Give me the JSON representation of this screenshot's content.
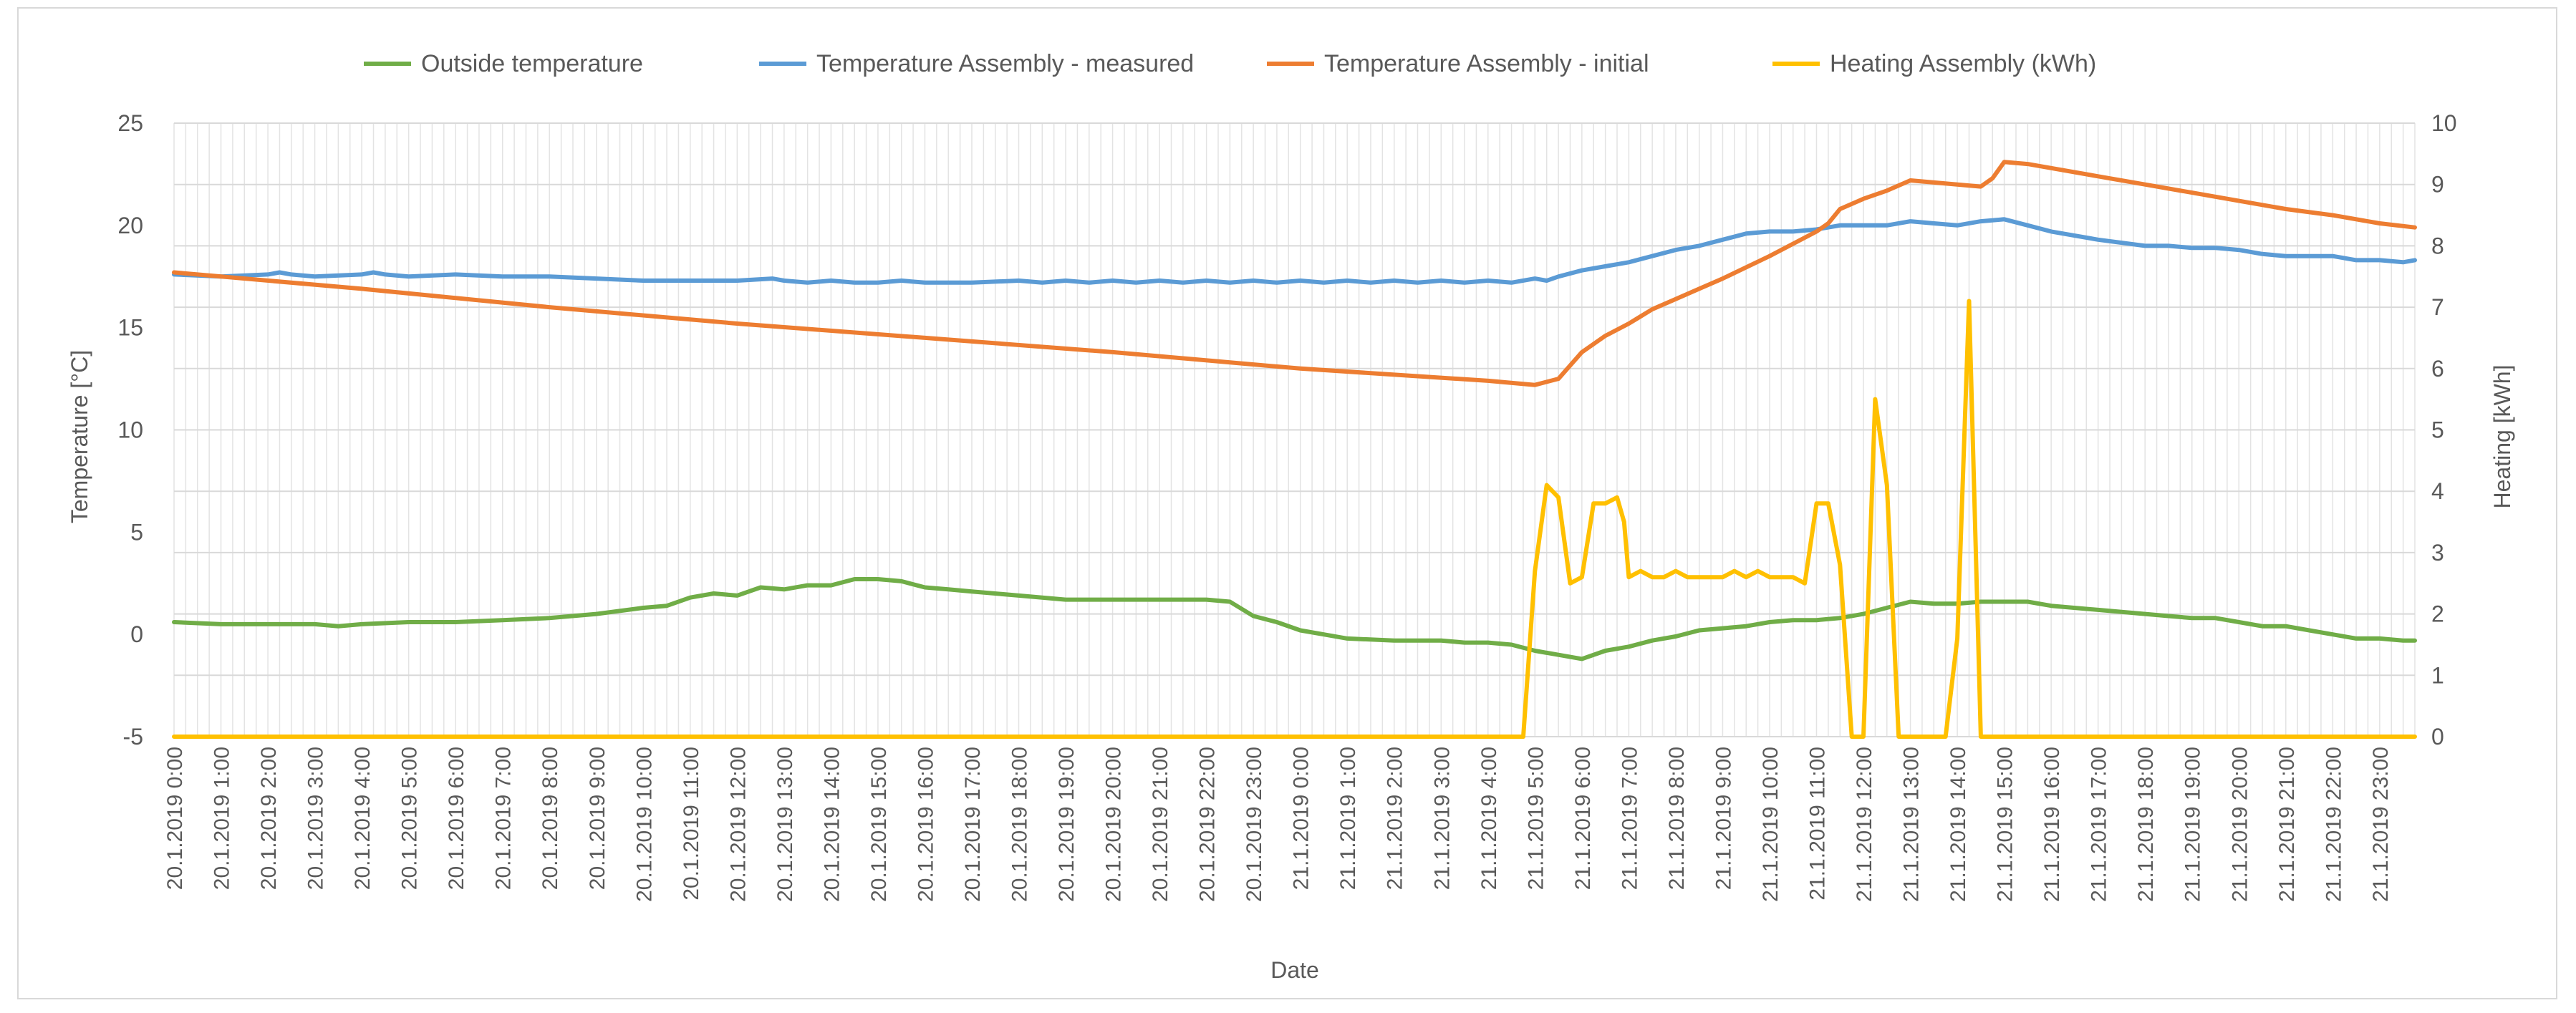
{
  "chart_data": {
    "type": "line",
    "title": "",
    "xlabel": "Date",
    "ylabel": "Temperature [°C]",
    "y2label": "Heating [kWh]",
    "ylim": [
      -5,
      25
    ],
    "yticks": [
      -5,
      0,
      5,
      10,
      15,
      20,
      25
    ],
    "y2lim": [
      0,
      10
    ],
    "y2ticks": [
      0,
      1,
      2,
      3,
      4,
      5,
      6,
      7,
      8,
      9,
      10
    ],
    "grid": true,
    "legend_position": "top",
    "x_domain": [
      0,
      47.75
    ],
    "tick_labels": [
      "20.1.2019 0:00",
      "20.1.2019 1:00",
      "20.1.2019 2:00",
      "20.1.2019 3:00",
      "20.1.2019 4:00",
      "20.1.2019 5:00",
      "20.1.2019 6:00",
      "20.1.2019 7:00",
      "20.1.2019 8:00",
      "20.1.2019 9:00",
      "20.1.2019 10:00",
      "20.1.2019 11:00",
      "20.1.2019 12:00",
      "20.1.2019 13:00",
      "20.1.2019 14:00",
      "20.1.2019 15:00",
      "20.1.2019 16:00",
      "20.1.2019 17:00",
      "20.1.2019 18:00",
      "20.1.2019 19:00",
      "20.1.2019 20:00",
      "20.1.2019 21:00",
      "20.1.2019 22:00",
      "20.1.2019 23:00",
      "21.1.2019 0:00",
      "21.1.2019 1:00",
      "21.1.2019 2:00",
      "21.1.2019 3:00",
      "21.1.2019 4:00",
      "21.1.2019 5:00",
      "21.1.2019 6:00",
      "21.1.2019 7:00",
      "21.1.2019 8:00",
      "21.1.2019 9:00",
      "21.1.2019 10:00",
      "21.1.2019 11:00",
      "21.1.2019 12:00",
      "21.1.2019 13:00",
      "21.1.2019 14:00",
      "21.1.2019 15:00",
      "21.1.2019 16:00",
      "21.1.2019 17:00",
      "21.1.2019 18:00",
      "21.1.2019 19:00",
      "21.1.2019 20:00",
      "21.1.2019 21:00",
      "21.1.2019 22:00",
      "21.1.2019 23:00"
    ],
    "series": [
      {
        "name": "Outside temperature",
        "color": "#70AD47",
        "axis": "left",
        "x": [
          0,
          1,
          2,
          3,
          3.5,
          4,
          5,
          6,
          7,
          8,
          9,
          10,
          10.5,
          11,
          11.5,
          12,
          12.5,
          13,
          13.5,
          14,
          14.5,
          15,
          15.5,
          16,
          16.5,
          17,
          18,
          19,
          20,
          21,
          22,
          22.5,
          23,
          23.5,
          24,
          24.5,
          25,
          26,
          26.5,
          27,
          27.5,
          28,
          28.5,
          29,
          29.5,
          30,
          30.5,
          31,
          31.5,
          32,
          32.5,
          33,
          33.5,
          34,
          34.5,
          35,
          35.5,
          36,
          36.5,
          37,
          37.5,
          38,
          38.5,
          39,
          39.5,
          40,
          41,
          42,
          42.5,
          43,
          43.5,
          44,
          44.5,
          45,
          45.5,
          46,
          46.5,
          47,
          47.5,
          47.75
        ],
        "values": [
          0.6,
          0.5,
          0.5,
          0.5,
          0.4,
          0.5,
          0.6,
          0.6,
          0.7,
          0.8,
          1.0,
          1.3,
          1.4,
          1.8,
          2.0,
          1.9,
          2.3,
          2.2,
          2.4,
          2.4,
          2.7,
          2.7,
          2.6,
          2.3,
          2.2,
          2.1,
          1.9,
          1.7,
          1.7,
          1.7,
          1.7,
          1.6,
          0.9,
          0.6,
          0.2,
          0.0,
          -0.2,
          -0.3,
          -0.3,
          -0.3,
          -0.4,
          -0.4,
          -0.5,
          -0.8,
          -1.0,
          -1.2,
          -0.8,
          -0.6,
          -0.3,
          -0.1,
          0.2,
          0.3,
          0.4,
          0.6,
          0.7,
          0.7,
          0.8,
          1.0,
          1.3,
          1.6,
          1.5,
          1.5,
          1.6,
          1.6,
          1.6,
          1.4,
          1.2,
          1.0,
          0.9,
          0.8,
          0.8,
          0.6,
          0.4,
          0.4,
          0.2,
          0.0,
          -0.2,
          -0.2,
          -0.3,
          -0.3
        ]
      },
      {
        "name": "Temperature Assembly - measured",
        "color": "#5B9BD5",
        "axis": "left",
        "x": [
          0,
          1,
          2,
          2.25,
          2.5,
          3,
          4,
          4.25,
          4.5,
          5,
          6,
          7,
          8,
          9,
          10,
          11,
          12,
          12.75,
          13,
          13.5,
          14,
          14.5,
          15,
          15.5,
          16,
          17,
          18,
          18.5,
          19,
          19.5,
          20,
          20.5,
          21,
          21.5,
          22,
          22.5,
          23,
          23.5,
          24,
          24.5,
          25,
          25.5,
          26,
          26.5,
          27,
          27.5,
          28,
          28.5,
          29,
          29.25,
          29.5,
          30,
          30.5,
          31,
          31.5,
          32,
          32.5,
          33,
          33.5,
          34,
          34.5,
          35,
          35.5,
          36,
          36.5,
          37,
          37.5,
          38,
          38.5,
          39,
          39.5,
          40,
          41,
          42,
          42.5,
          43,
          43.5,
          44,
          44.5,
          45,
          45.5,
          46,
          46.5,
          47,
          47.5,
          47.75
        ],
        "values": [
          17.6,
          17.5,
          17.6,
          17.7,
          17.6,
          17.5,
          17.6,
          17.7,
          17.6,
          17.5,
          17.6,
          17.5,
          17.5,
          17.4,
          17.3,
          17.3,
          17.3,
          17.4,
          17.3,
          17.2,
          17.3,
          17.2,
          17.2,
          17.3,
          17.2,
          17.2,
          17.3,
          17.2,
          17.3,
          17.2,
          17.3,
          17.2,
          17.3,
          17.2,
          17.3,
          17.2,
          17.3,
          17.2,
          17.3,
          17.2,
          17.3,
          17.2,
          17.3,
          17.2,
          17.3,
          17.2,
          17.3,
          17.2,
          17.4,
          17.3,
          17.5,
          17.8,
          18.0,
          18.2,
          18.5,
          18.8,
          19.0,
          19.3,
          19.6,
          19.7,
          19.7,
          19.8,
          20.0,
          20.0,
          20.0,
          20.2,
          20.1,
          20.0,
          20.2,
          20.3,
          20.0,
          19.7,
          19.3,
          19.0,
          19.0,
          18.9,
          18.9,
          18.8,
          18.6,
          18.5,
          18.5,
          18.5,
          18.3,
          18.3,
          18.2,
          18.3
        ]
      },
      {
        "name": "Temperature Assembly - initial",
        "color": "#ED7D31",
        "axis": "left",
        "x": [
          0,
          4,
          8,
          12,
          16,
          20,
          24,
          28,
          29,
          29.5,
          30,
          30.5,
          31,
          31.5,
          32,
          32.5,
          33,
          34,
          35,
          35.25,
          35.5,
          36,
          36.5,
          37,
          38,
          38.5,
          38.75,
          39,
          39.5,
          40,
          41,
          42,
          43,
          44,
          45,
          46,
          47,
          47.75
        ],
        "values": [
          17.7,
          16.9,
          16.0,
          15.2,
          14.5,
          13.8,
          13.0,
          12.4,
          12.2,
          12.5,
          13.8,
          14.6,
          15.2,
          15.9,
          16.4,
          16.9,
          17.4,
          18.5,
          19.7,
          20.1,
          20.8,
          21.3,
          21.7,
          22.2,
          22.0,
          21.9,
          22.3,
          23.1,
          23.0,
          22.8,
          22.4,
          22.0,
          21.6,
          21.2,
          20.8,
          20.5,
          20.1,
          19.9
        ]
      },
      {
        "name": "Heating Assembly (kWh)",
        "color": "#FFC000",
        "axis": "right",
        "x": [
          0,
          28.75,
          29,
          29.25,
          29.5,
          29.75,
          30,
          30.25,
          30.5,
          30.75,
          30.9,
          31,
          31.25,
          31.5,
          31.75,
          32,
          32.25,
          32.5,
          32.75,
          33,
          33.25,
          33.5,
          33.75,
          34,
          34.25,
          34.5,
          34.75,
          35,
          35.25,
          35.5,
          35.75,
          36,
          36.25,
          36.5,
          36.75,
          37,
          37.25,
          37.5,
          37.75,
          38,
          38.25,
          38.5,
          38.75,
          47.75
        ],
        "values": [
          0,
          0,
          2.7,
          4.1,
          3.9,
          2.5,
          2.6,
          3.8,
          3.8,
          3.9,
          3.5,
          2.6,
          2.7,
          2.6,
          2.6,
          2.7,
          2.6,
          2.6,
          2.6,
          2.6,
          2.7,
          2.6,
          2.7,
          2.6,
          2.6,
          2.6,
          2.5,
          3.8,
          3.8,
          2.8,
          0,
          0,
          5.5,
          4.1,
          0,
          0,
          0,
          0,
          0,
          1.6,
          7.1,
          0,
          0,
          0
        ]
      }
    ]
  }
}
